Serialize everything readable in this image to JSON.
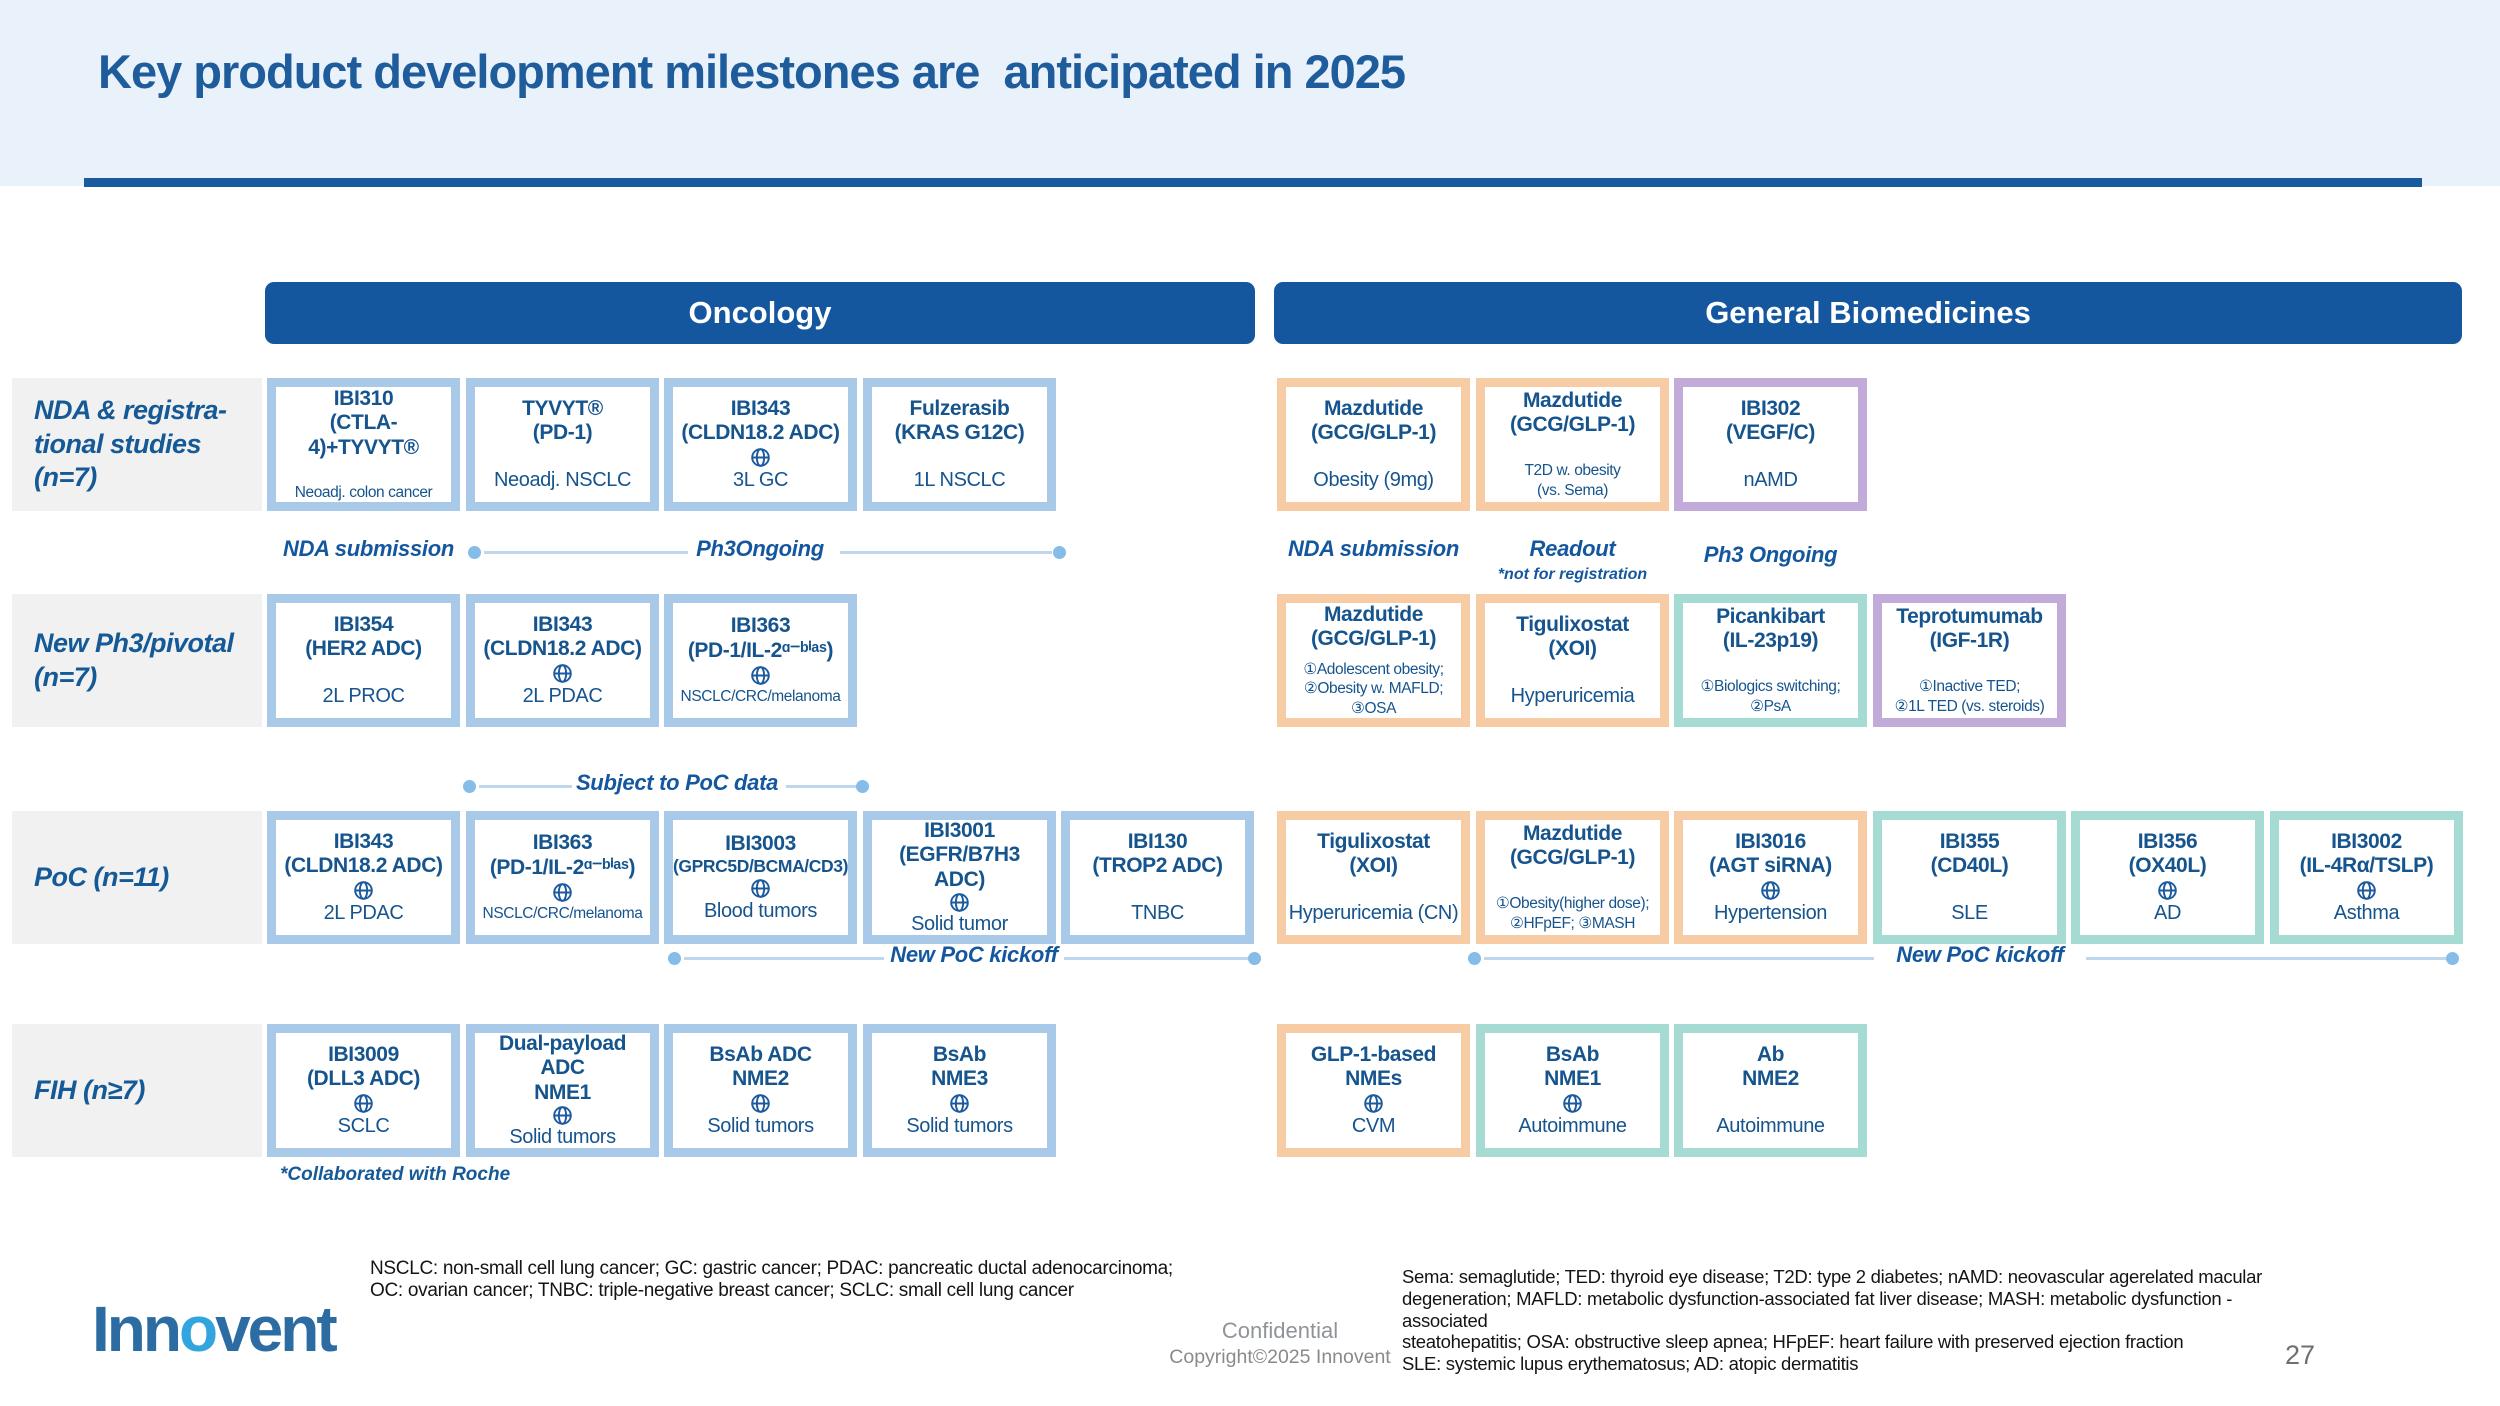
{
  "slide": {
    "title": "Key product development milestones are  anticipated in 2025",
    "confidential": "Confidential",
    "copyright": "Copyright©2025 Innovent",
    "page_number": "27"
  },
  "header": {
    "columns": [
      {
        "label": "Oncology"
      },
      {
        "label": "General Biomedicines"
      }
    ]
  },
  "colors": {
    "navy": "#15579E",
    "text_blue": "#16548E",
    "band_bg": "#E9F1FA",
    "frame_blue": "#A9C9E8",
    "frame_orange": "#F7CCA5",
    "frame_teal": "#A5DBD3",
    "frame_purple": "#C2ABD8",
    "label_bg": "#F1F1F1",
    "line_blue": "#BDD7EE",
    "dot_blue": "#85BCE8"
  },
  "rows": [
    {
      "label": "NDA  & registra-\ntional studies\n(n=7)",
      "onc_cards": [
        {
          "name": "IBI310",
          "target": "(CTLA-4)+TYVYT®",
          "frame": "blue",
          "indication": "Neoadj. colon cancer",
          "ind_small": true
        },
        {
          "name": "TYVYT®",
          "target": "(PD-1)",
          "frame": "blue",
          "indication": "Neoadj. NSCLC"
        },
        {
          "name": "IBI343",
          "target": "(CLDN18.2 ADC)",
          "frame": "blue",
          "globe": true,
          "indication": "3L GC"
        },
        {
          "name": "Fulzerasib",
          "target": "(KRAS G12C)",
          "frame": "blue",
          "indication": "1L NSCLC"
        }
      ],
      "gb_cards": [
        {
          "name": "Mazdutide",
          "target": "(GCG/GLP-1)",
          "frame": "orange",
          "indication": "Obesity (9mg)"
        },
        {
          "name": "Mazdutide",
          "target": "(GCG/GLP-1)",
          "frame": "orange",
          "indication": "T2D w. obesity\n(vs. Sema)",
          "ind_small": true
        },
        {
          "name": "IBI302",
          "target": "(VEGF/C)",
          "frame": "purple",
          "indication": "nAMD"
        }
      ],
      "milestones": {
        "onc_left": "NDA submission",
        "onc_mid": "Ph3Ongoing",
        "gb_1": "NDA submission",
        "gb_2": "Readout",
        "gb_2_note": "*not for registration",
        "gb_3": "Ph3 Ongoing"
      }
    },
    {
      "label": "New Ph3/pivotal\n(n=7)",
      "onc_cards": [
        {
          "name": "IBI354",
          "target": "(HER2 ADC)",
          "frame": "blue",
          "indication": "2L PROC"
        },
        {
          "name": "IBI343",
          "target": "(CLDN18.2 ADC)",
          "frame": "blue",
          "globe": true,
          "indication": "2L PDAC"
        },
        {
          "name": "IBI363",
          "target": "(PD-1/IL-2ᵅ⁻ᵇⁱᵃˢ)",
          "frame": "blue",
          "globe": true,
          "indication": "NSCLC/CRC/melanoma",
          "ind_small": true
        }
      ],
      "gb_cards": [
        {
          "name": "Mazdutide",
          "target": "(GCG/GLP-1)",
          "frame": "orange",
          "indication": "①Adolescent obesity;\n②Obesity w. MAFLD;  ③OSA",
          "ind_small": true
        },
        {
          "name": "Tigulixostat",
          "target": "(XOI)",
          "frame": "orange",
          "indication": "Hyperuricemia"
        },
        {
          "name": "Picankibart",
          "target": "(IL-23p19)",
          "frame": "teal",
          "indication": "①Biologics switching;\n②PsA",
          "ind_small": true
        },
        {
          "name": "Teprotumumab",
          "target": "(IGF-1R)",
          "frame": "purple",
          "indication": "①Inactive TED;\n②1L TED (vs. steroids)",
          "ind_small": true
        }
      ],
      "milestones": {
        "onc_mid": "Subject to PoC data"
      }
    },
    {
      "label": "PoC (n=11)",
      "onc_cards": [
        {
          "name": "IBI343",
          "target": "(CLDN18.2 ADC)",
          "frame": "blue",
          "globe": true,
          "indication": "2L PDAC"
        },
        {
          "name": "IBI363",
          "target": "(PD-1/IL-2ᵅ⁻ᵇⁱᵃˢ)",
          "frame": "blue",
          "globe": true,
          "indication": "NSCLC/CRC/melanoma",
          "ind_small": true
        },
        {
          "name": "IBI3003",
          "target": "(GPRC5D/BCMA/CD3)",
          "target_small": true,
          "frame": "blue",
          "globe": true,
          "indication": "Blood tumors"
        },
        {
          "name": "IBI3001",
          "target": "(EGFR/B7H3 ADC)",
          "frame": "blue",
          "globe": true,
          "indication": "Solid tumor"
        },
        {
          "name": "IBI130",
          "target": "(TROP2 ADC)",
          "frame": "blue",
          "indication": "TNBC"
        }
      ],
      "gb_cards": [
        {
          "name": "Tigulixostat",
          "target": "(XOI)",
          "frame": "orange",
          "indication": "Hyperuricemia (CN)"
        },
        {
          "name": "Mazdutide",
          "target": "(GCG/GLP-1)",
          "frame": "orange",
          "indication": "①Obesity(higher dose);\n②HFpEF;  ③MASH",
          "ind_small": true
        },
        {
          "name": "IBI3016",
          "target": "(AGT siRNA)",
          "frame": "orange",
          "globe": true,
          "indication": "Hypertension"
        },
        {
          "name": "IBI355",
          "target": "(CD40L)",
          "frame": "teal",
          "indication": "SLE"
        },
        {
          "name": "IBI356",
          "target": "(OX40L)",
          "frame": "teal",
          "globe": true,
          "indication": "AD"
        },
        {
          "name": "IBI3002",
          "target": "(IL-4Rα/TSLP)",
          "frame": "teal",
          "globe": true,
          "indication": "Asthma"
        }
      ],
      "milestones": {
        "onc_mid": "New PoC kickoff",
        "gb_mid": "New PoC kickoff"
      }
    },
    {
      "label": "FIH (n≥7)",
      "onc_cards": [
        {
          "name": "IBI3009",
          "target": "(DLL3 ADC)",
          "frame": "blue",
          "globe": true,
          "indication": "SCLC"
        },
        {
          "name": "Dual-payload ADC",
          "target": "NME1",
          "frame": "blue",
          "globe": true,
          "indication": "Solid tumors"
        },
        {
          "name": "BsAb ADC",
          "target": "NME2",
          "frame": "blue",
          "globe": true,
          "indication": "Solid tumors"
        },
        {
          "name": "BsAb",
          "target": "NME3",
          "frame": "blue",
          "globe": true,
          "indication": "Solid tumors"
        }
      ],
      "gb_cards": [
        {
          "name": "GLP-1-based",
          "target": "NMEs",
          "frame": "orange",
          "globe": true,
          "indication": "CVM"
        },
        {
          "name": "BsAb",
          "target": "NME1",
          "frame": "teal",
          "globe": true,
          "indication": "Autoimmune"
        },
        {
          "name": "Ab",
          "target": "NME2",
          "frame": "teal",
          "indication": "Autoimmune"
        }
      ],
      "footnote": "*Collaborated with Roche"
    }
  ],
  "footer": {
    "onc_abbrev": "NSCLC: non-small cell lung cancer; GC: gastric cancer; PDAC: pancreatic ductal adenocarcinoma;\nOC: ovarian cancer; TNBC: triple-negative breast cancer; SCLC: small cell lung cancer",
    "gb_abbrev": "Sema: semaglutide; TED: thyroid eye disease; T2D: type 2 diabetes; nAMD: neovascular agerelated macular\ndegeneration; MAFLD: metabolic dysfunction-associated fat liver disease; MASH: metabolic dysfunction -associated\nsteatohepatitis; OSA: obstructive sleep apnea; HFpEF: heart failure with preserved ejection fraction\nSLE: systemic lupus erythematosus; AD: atopic dermatitis",
    "logo": {
      "p1": "Inn",
      "p2": "o",
      "p3": "vent"
    }
  }
}
